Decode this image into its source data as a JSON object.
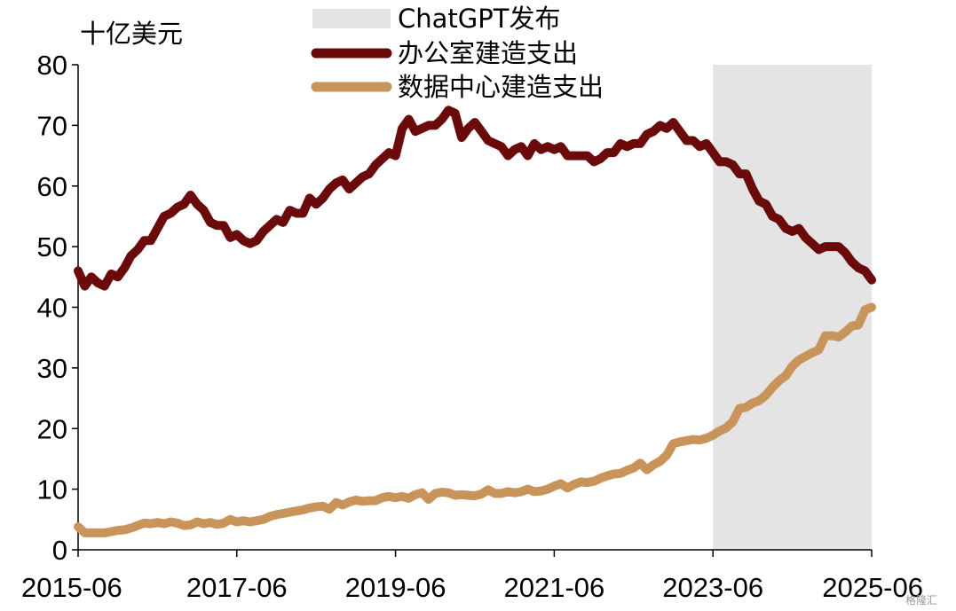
{
  "chart_data": {
    "type": "line",
    "unit_label": "十亿美元",
    "ylim": [
      0,
      80
    ],
    "yticks": [
      0,
      10,
      20,
      30,
      40,
      50,
      60,
      70,
      80
    ],
    "xlim": [
      "2015-06",
      "2025-06"
    ],
    "xticks": [
      "2015-06",
      "2017-06",
      "2019-06",
      "2021-06",
      "2023-06",
      "2025-06"
    ],
    "grid": false,
    "legend_position": "top",
    "shaded_region": {
      "label": "ChatGPT发布",
      "start": "2023-06",
      "end": "2025-06",
      "color": "#e4e4e4"
    },
    "series": [
      {
        "name": "办公室建造支出",
        "color": "#6b0a0a",
        "points": [
          [
            "2015-06",
            46
          ],
          [
            "2015-07",
            43.5
          ],
          [
            "2015-08",
            45
          ],
          [
            "2015-09",
            44
          ],
          [
            "2015-10",
            43.5
          ],
          [
            "2015-11",
            45.5
          ],
          [
            "2015-12",
            45
          ],
          [
            "2016-01",
            46.5
          ],
          [
            "2016-02",
            48.5
          ],
          [
            "2016-03",
            49.5
          ],
          [
            "2016-04",
            51
          ],
          [
            "2016-05",
            51
          ],
          [
            "2016-06",
            53
          ],
          [
            "2016-07",
            55
          ],
          [
            "2016-08",
            55.5
          ],
          [
            "2016-09",
            56.5
          ],
          [
            "2016-10",
            57
          ],
          [
            "2016-11",
            58.5
          ],
          [
            "2016-12",
            57
          ],
          [
            "2017-01",
            56
          ],
          [
            "2017-02",
            54
          ],
          [
            "2017-03",
            53.5
          ],
          [
            "2017-04",
            53.5
          ],
          [
            "2017-05",
            51.5
          ],
          [
            "2017-06",
            52
          ],
          [
            "2017-07",
            51
          ],
          [
            "2017-08",
            50.5
          ],
          [
            "2017-09",
            51
          ],
          [
            "2017-10",
            52.5
          ],
          [
            "2017-11",
            53.5
          ],
          [
            "2017-12",
            54.5
          ],
          [
            "2018-01",
            54
          ],
          [
            "2018-02",
            56
          ],
          [
            "2018-03",
            55.5
          ],
          [
            "2018-04",
            55.5
          ],
          [
            "2018-05",
            58
          ],
          [
            "2018-06",
            57
          ],
          [
            "2018-07",
            58
          ],
          [
            "2018-08",
            59.5
          ],
          [
            "2018-09",
            60.5
          ],
          [
            "2018-10",
            61
          ],
          [
            "2018-11",
            59.5
          ],
          [
            "2018-12",
            60.5
          ],
          [
            "2019-01",
            61.5
          ],
          [
            "2019-02",
            62
          ],
          [
            "2019-03",
            63.5
          ],
          [
            "2019-04",
            64.5
          ],
          [
            "2019-05",
            65.5
          ],
          [
            "2019-06",
            65
          ],
          [
            "2019-07",
            69.5
          ],
          [
            "2019-08",
            71
          ],
          [
            "2019-09",
            69
          ],
          [
            "2019-10",
            69.5
          ],
          [
            "2019-11",
            70
          ],
          [
            "2019-12",
            70
          ],
          [
            "2020-01",
            71
          ],
          [
            "2020-02",
            72.5
          ],
          [
            "2020-03",
            72
          ],
          [
            "2020-04",
            68
          ],
          [
            "2020-05",
            69.5
          ],
          [
            "2020-06",
            70.5
          ],
          [
            "2020-07",
            69
          ],
          [
            "2020-08",
            67.5
          ],
          [
            "2020-09",
            67
          ],
          [
            "2020-10",
            66.5
          ],
          [
            "2020-11",
            65
          ],
          [
            "2020-12",
            66
          ],
          [
            "2021-01",
            66.5
          ],
          [
            "2021-02",
            65
          ],
          [
            "2021-03",
            67
          ],
          [
            "2021-04",
            66
          ],
          [
            "2021-05",
            66.5
          ],
          [
            "2021-06",
            66
          ],
          [
            "2021-07",
            66.5
          ],
          [
            "2021-08",
            65
          ],
          [
            "2021-09",
            65
          ],
          [
            "2021-10",
            65
          ],
          [
            "2021-11",
            65
          ],
          [
            "2021-12",
            64
          ],
          [
            "2022-01",
            64.5
          ],
          [
            "2022-02",
            65.5
          ],
          [
            "2022-03",
            65.5
          ],
          [
            "2022-04",
            67
          ],
          [
            "2022-05",
            66.5
          ],
          [
            "2022-06",
            67
          ],
          [
            "2022-07",
            67
          ],
          [
            "2022-08",
            68.5
          ],
          [
            "2022-09",
            69
          ],
          [
            "2022-10",
            70
          ],
          [
            "2022-11",
            69.5
          ],
          [
            "2022-12",
            70.5
          ],
          [
            "2023-01",
            69
          ],
          [
            "2023-02",
            67.5
          ],
          [
            "2023-03",
            67.5
          ],
          [
            "2023-04",
            66.5
          ],
          [
            "2023-05",
            67
          ],
          [
            "2023-06",
            65.5
          ],
          [
            "2023-07",
            64
          ],
          [
            "2023-08",
            64
          ],
          [
            "2023-09",
            63.5
          ],
          [
            "2023-10",
            62
          ],
          [
            "2023-11",
            62
          ],
          [
            "2023-12",
            59.5
          ],
          [
            "2024-01",
            57.5
          ],
          [
            "2024-02",
            57
          ],
          [
            "2024-03",
            55
          ],
          [
            "2024-04",
            54.5
          ],
          [
            "2024-05",
            53
          ],
          [
            "2024-06",
            52.5
          ],
          [
            "2024-07",
            53
          ],
          [
            "2024-08",
            51.5
          ],
          [
            "2024-09",
            50.5
          ],
          [
            "2024-10",
            49.5
          ],
          [
            "2024-11",
            50
          ],
          [
            "2024-12",
            50
          ],
          [
            "2025-01",
            50
          ],
          [
            "2025-02",
            49
          ],
          [
            "2025-03",
            47.5
          ],
          [
            "2025-04",
            46.5
          ],
          [
            "2025-05",
            46
          ],
          [
            "2025-06",
            44.5
          ]
        ]
      },
      {
        "name": "数据中心建造支出",
        "color": "#c8945a",
        "points": [
          [
            "2015-06",
            3.8
          ],
          [
            "2015-07",
            2.8
          ],
          [
            "2015-08",
            2.8
          ],
          [
            "2015-09",
            2.8
          ],
          [
            "2015-10",
            2.8
          ],
          [
            "2015-11",
            3
          ],
          [
            "2015-12",
            3.2
          ],
          [
            "2016-01",
            3.3
          ],
          [
            "2016-02",
            3.6
          ],
          [
            "2016-03",
            4
          ],
          [
            "2016-04",
            4.4
          ],
          [
            "2016-05",
            4.3
          ],
          [
            "2016-06",
            4.5
          ],
          [
            "2016-07",
            4.3
          ],
          [
            "2016-08",
            4.6
          ],
          [
            "2016-09",
            4.4
          ],
          [
            "2016-10",
            4
          ],
          [
            "2016-11",
            4.1
          ],
          [
            "2016-12",
            4.6
          ],
          [
            "2017-01",
            4.3
          ],
          [
            "2017-02",
            4.5
          ],
          [
            "2017-03",
            4.2
          ],
          [
            "2017-04",
            4.4
          ],
          [
            "2017-05",
            5
          ],
          [
            "2017-06",
            4.6
          ],
          [
            "2017-07",
            4.8
          ],
          [
            "2017-08",
            4.6
          ],
          [
            "2017-09",
            4.8
          ],
          [
            "2017-10",
            5
          ],
          [
            "2017-11",
            5.5
          ],
          [
            "2017-12",
            5.8
          ],
          [
            "2018-01",
            6
          ],
          [
            "2018-02",
            6.2
          ],
          [
            "2018-03",
            6.4
          ],
          [
            "2018-04",
            6.6
          ],
          [
            "2018-05",
            6.9
          ],
          [
            "2018-06",
            7.1
          ],
          [
            "2018-07",
            7.2
          ],
          [
            "2018-08",
            6.7
          ],
          [
            "2018-09",
            7.8
          ],
          [
            "2018-10",
            7.4
          ],
          [
            "2018-11",
            7.9
          ],
          [
            "2018-12",
            8.2
          ],
          [
            "2019-01",
            8
          ],
          [
            "2019-02",
            8.1
          ],
          [
            "2019-03",
            8.1
          ],
          [
            "2019-04",
            8.6
          ],
          [
            "2019-05",
            8.8
          ],
          [
            "2019-06",
            8.6
          ],
          [
            "2019-07",
            8.8
          ],
          [
            "2019-08",
            8.5
          ],
          [
            "2019-09",
            9.1
          ],
          [
            "2019-10",
            9.4
          ],
          [
            "2019-11",
            8.3
          ],
          [
            "2019-12",
            9.3
          ],
          [
            "2020-01",
            9.5
          ],
          [
            "2020-02",
            9.4
          ],
          [
            "2020-03",
            9
          ],
          [
            "2020-04",
            9.1
          ],
          [
            "2020-05",
            9
          ],
          [
            "2020-06",
            8.9
          ],
          [
            "2020-07",
            9.2
          ],
          [
            "2020-08",
            9.9
          ],
          [
            "2020-09",
            9.3
          ],
          [
            "2020-10",
            9.3
          ],
          [
            "2020-11",
            9.6
          ],
          [
            "2020-12",
            9.4
          ],
          [
            "2021-01",
            9.6
          ],
          [
            "2021-02",
            10
          ],
          [
            "2021-03",
            9.6
          ],
          [
            "2021-04",
            9.7
          ],
          [
            "2021-05",
            10
          ],
          [
            "2021-06",
            10.5
          ],
          [
            "2021-07",
            10.9
          ],
          [
            "2021-08",
            10.2
          ],
          [
            "2021-09",
            10.8
          ],
          [
            "2021-10",
            11.2
          ],
          [
            "2021-11",
            11.1
          ],
          [
            "2021-12",
            11.3
          ],
          [
            "2022-01",
            11.8
          ],
          [
            "2022-02",
            12.2
          ],
          [
            "2022-03",
            12.5
          ],
          [
            "2022-04",
            12.6
          ],
          [
            "2022-05",
            13.1
          ],
          [
            "2022-06",
            13.5
          ],
          [
            "2022-07",
            14.3
          ],
          [
            "2022-08",
            13.2
          ],
          [
            "2022-09",
            14
          ],
          [
            "2022-10",
            14.6
          ],
          [
            "2022-11",
            15.6
          ],
          [
            "2022-12",
            17.5
          ],
          [
            "2023-01",
            17.8
          ],
          [
            "2023-02",
            18
          ],
          [
            "2023-03",
            18.2
          ],
          [
            "2023-04",
            18.1
          ],
          [
            "2023-05",
            18.4
          ],
          [
            "2023-06",
            18.9
          ],
          [
            "2023-07",
            19.6
          ],
          [
            "2023-08",
            20.1
          ],
          [
            "2023-09",
            21.1
          ],
          [
            "2023-10",
            23.3
          ],
          [
            "2023-11",
            23.5
          ],
          [
            "2023-12",
            24.2
          ],
          [
            "2024-01",
            24.6
          ],
          [
            "2024-02",
            25.5
          ],
          [
            "2024-03",
            26.8
          ],
          [
            "2024-04",
            27.9
          ],
          [
            "2024-05",
            28.7
          ],
          [
            "2024-06",
            30.3
          ],
          [
            "2024-07",
            31.3
          ],
          [
            "2024-08",
            31.9
          ],
          [
            "2024-09",
            32.5
          ],
          [
            "2024-10",
            33
          ],
          [
            "2024-11",
            35.3
          ],
          [
            "2024-12",
            35.3
          ],
          [
            "2025-01",
            35.1
          ],
          [
            "2025-02",
            35.9
          ],
          [
            "2025-03",
            36.9
          ],
          [
            "2025-04",
            37.1
          ],
          [
            "2025-05",
            39.6
          ],
          [
            "2025-06",
            40
          ]
        ]
      }
    ]
  },
  "watermark": "格隆汇"
}
